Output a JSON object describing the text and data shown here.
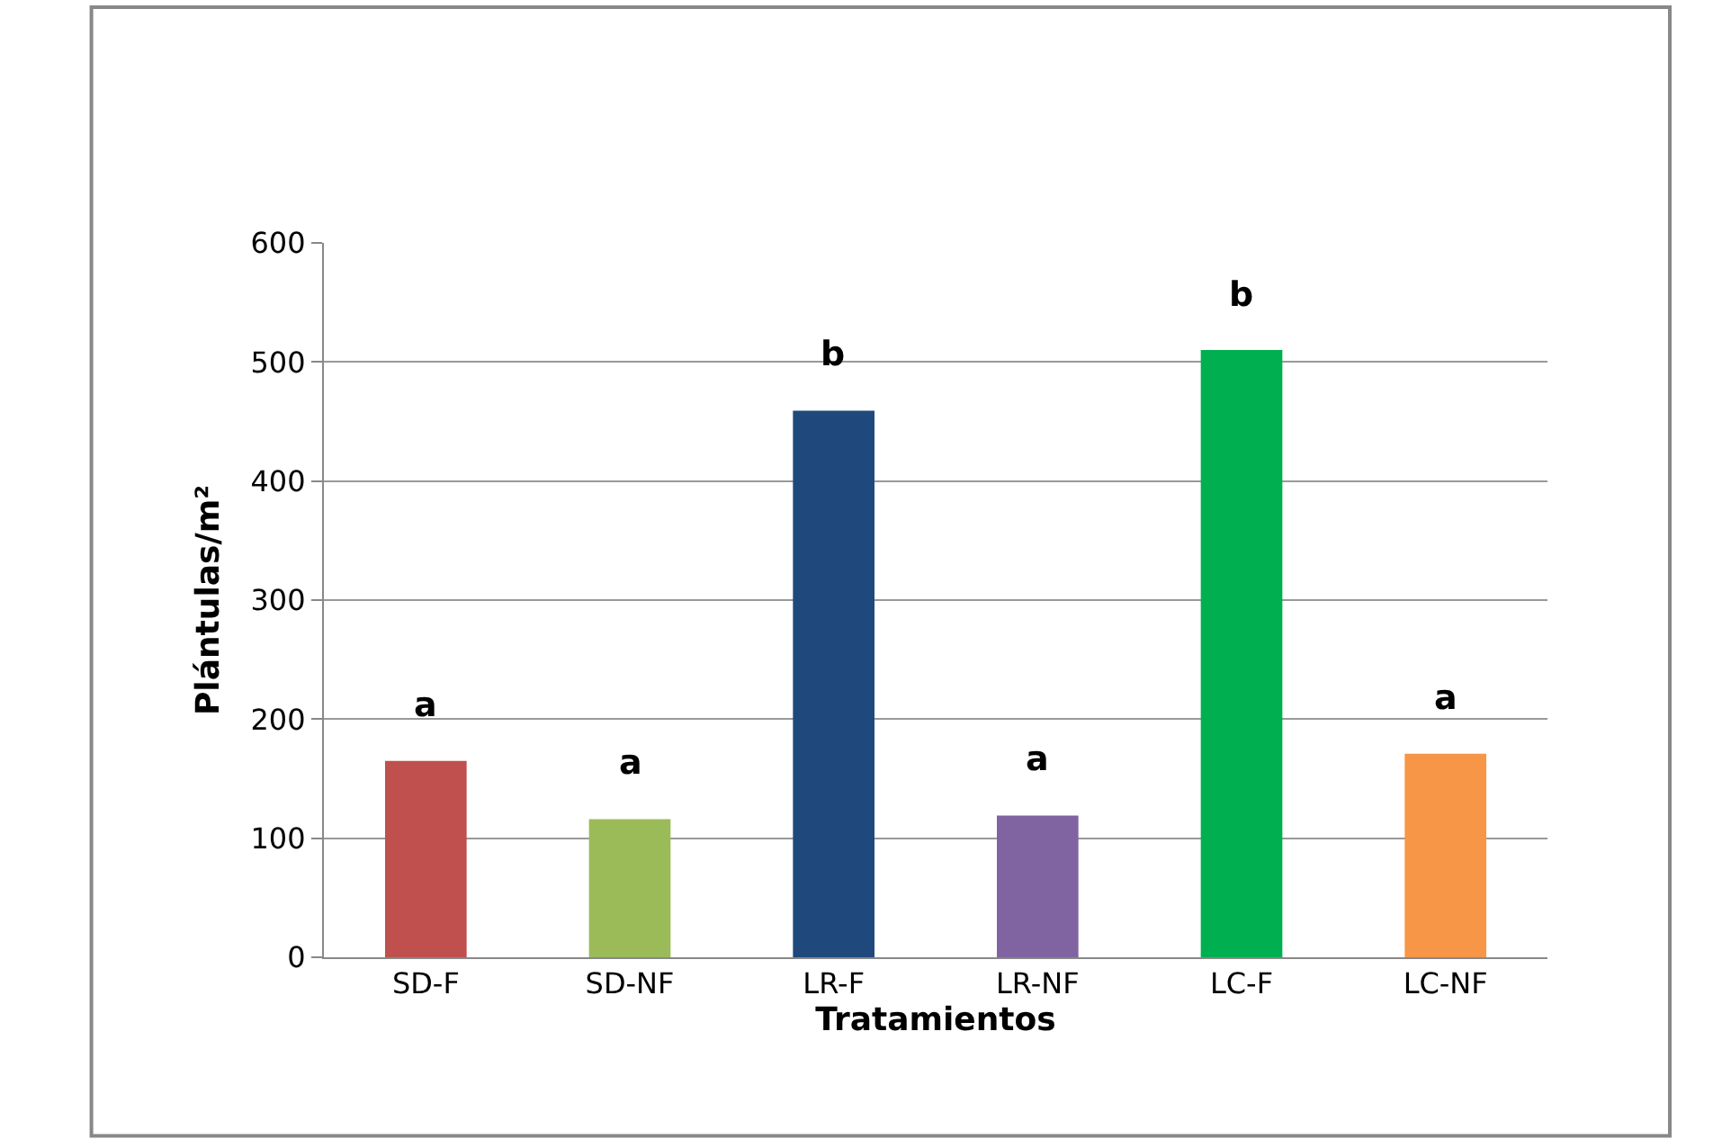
{
  "chart_data": {
    "type": "bar",
    "xlabel": "Tratamientos",
    "ylabel": "Plántulas/m²",
    "categories": [
      "SD-F",
      "SD-NF",
      "LR-F",
      "LR-NF",
      "LC-F",
      "LC-NF"
    ],
    "values": [
      165,
      116,
      459,
      119,
      510,
      171
    ],
    "colors": [
      "#c0504d",
      "#9bbb59",
      "#1f497d",
      "#8064a2",
      "#00b050",
      "#f79646"
    ],
    "ylim": [
      0,
      600
    ],
    "yticks": [
      0,
      100,
      200,
      300,
      400,
      500,
      600
    ],
    "grid": "y",
    "legend": false,
    "annotations": [
      "a",
      "a",
      "b",
      "a",
      "b",
      "a"
    ]
  }
}
